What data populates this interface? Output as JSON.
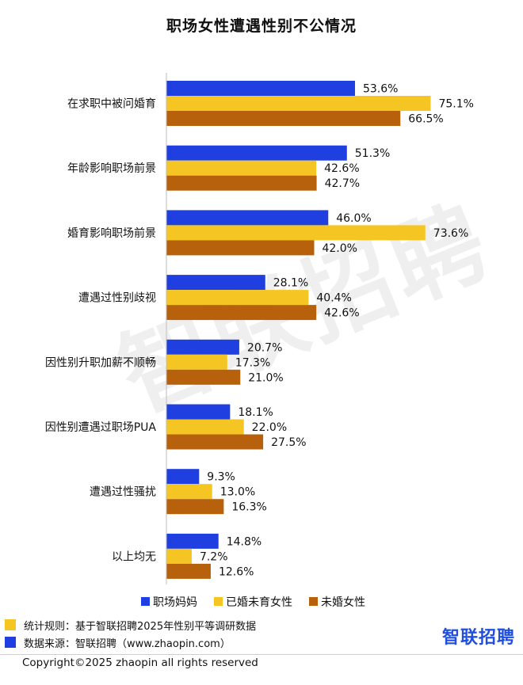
{
  "chart_data": {
    "type": "bar",
    "orientation": "horizontal",
    "title": "职场女性遭遇性别不公情况",
    "categories": [
      "在求职中被问婚育",
      "年龄影响职场前景",
      "婚育影响职场前景",
      "遭遇过性别歧视",
      "因性别升职加薪不顺畅",
      "因性别遭遇过职场PUA",
      "遭遇过性骚扰",
      "以上均无"
    ],
    "series": [
      {
        "name": "职场妈妈",
        "color": "#1f3fe0",
        "values": [
          53.6,
          51.3,
          46.0,
          28.1,
          20.7,
          18.1,
          9.3,
          14.8
        ]
      },
      {
        "name": "已婚未育女性",
        "color": "#f5c623",
        "values": [
          75.1,
          42.6,
          73.6,
          40.4,
          17.3,
          22.0,
          13.0,
          7.2
        ]
      },
      {
        "name": "未婚女性",
        "color": "#b8610c",
        "values": [
          66.5,
          42.7,
          42.0,
          42.6,
          21.0,
          27.5,
          16.3,
          12.6
        ]
      }
    ],
    "value_suffix": "%",
    "xlim": [
      0,
      100
    ],
    "legend_position": "bottom",
    "grid": false
  },
  "watermark": "智联招聘",
  "footer": {
    "note_rule": "统计规则：基于智联招聘2025年性别平等调研数据",
    "note_rule_color": "#f5c623",
    "note_source": "数据来源：智联招聘（www.zhaopin.com）",
    "note_source_color": "#1f3fe0",
    "logo_text": "智联招聘",
    "copyright": "Copyright©2025 zhaopin all rights reserved"
  }
}
